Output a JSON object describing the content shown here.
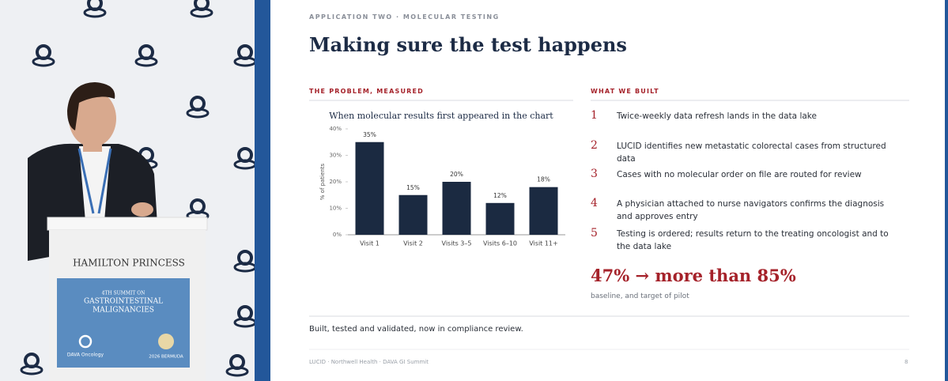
{
  "video": {
    "podium_name": "HAMILTON PRINCESS",
    "edition": "4TH SUMMIT ON",
    "event_line_1": "GASTROINTESTINAL",
    "event_line_2": "MALIGNANCIES",
    "sponsor": "DAVA Oncology",
    "location": "2026 BERMUDA"
  },
  "slide": {
    "kicker": "APPLICATION TWO · MOLECULAR TESTING",
    "title": "Making sure the test happens",
    "left_heading": "THE PROBLEM, MEASURED",
    "right_heading": "WHAT WE BUILT",
    "steps": [
      {
        "number": 1,
        "text": "Twice-weekly data refresh lands in the data lake"
      },
      {
        "number": 2,
        "text": "LUCID identifies new metastatic colorectal cases from structured data"
      },
      {
        "number": 3,
        "text": "Cases with no molecular order on file are routed for review"
      },
      {
        "number": 4,
        "text": "A physician attached to nurse navigators confirms the diagnosis and approves entry"
      },
      {
        "number": 5,
        "text": "Testing is ordered; results return to the treating oncologist and to the data lake"
      }
    ],
    "headline": "47% → more than 85%",
    "headline_note": "baseline, and target of pilot",
    "summary": "Built, tested and validated, now in compliance review.",
    "footer": "LUCID · Northwell Health · DAVA GI Summit",
    "page_number": 8
  },
  "chart_data": {
    "type": "bar",
    "title": "When molecular results first appeared in the chart",
    "y_label": "% of patients",
    "categories": [
      "Visit 1",
      "Visit 2",
      "Visits 3–5",
      "Visits 6–10",
      "Visit 11+"
    ],
    "values": [
      35,
      15,
      20,
      12,
      18
    ],
    "value_labels": [
      "35%",
      "15%",
      "20%",
      "12%",
      "18%"
    ],
    "color": "#1b2a41",
    "ylim": [
      0,
      40
    ],
    "yticks": [
      {
        "value": 0,
        "label": "0%"
      },
      {
        "value": 10,
        "label": "10%"
      },
      {
        "value": 20,
        "label": "20%"
      },
      {
        "value": 30,
        "label": "30%"
      },
      {
        "value": 40,
        "label": "40%"
      }
    ],
    "grid": false
  }
}
